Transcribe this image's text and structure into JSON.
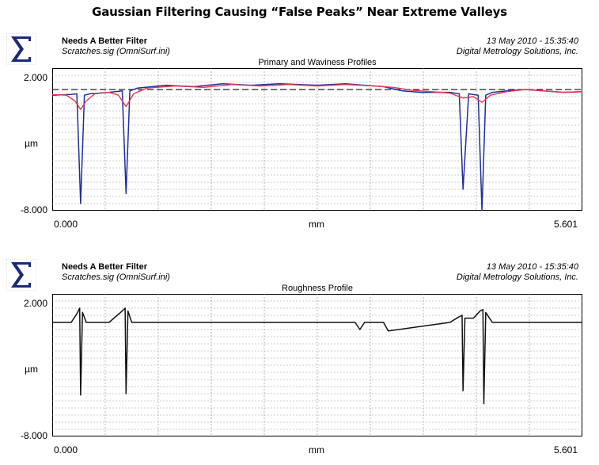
{
  "page_title": "Gaussian Filtering Causing “False Peaks” Near Extreme Valleys",
  "colors": {
    "primary": "#1f2f9c",
    "waviness": "#e8384a",
    "roughness": "#111111",
    "grid": "#9a9a9a",
    "logo": "#1a2a7a"
  },
  "panels": [
    {
      "logo_icon": "sigma-logo-icon",
      "title": "Needs A Better Filter",
      "file": "Scratches.sig  (OmniSurf.ini)",
      "date": "13 May 2010 - 15:35:40",
      "company": "Digital Metrology Solutions, Inc.",
      "plot_title": "Primary and Waviness Profiles",
      "y_top": "2.000",
      "y_unit": "µm",
      "y_bottom": "-8.000",
      "x_left": "0.000",
      "x_unit": "mm",
      "x_right": "5.601"
    },
    {
      "logo_icon": "sigma-logo-icon",
      "title": "Needs A Better Filter",
      "file": "Scratches.sig  (OmniSurf.ini)",
      "date": "13 May 2010 - 15:35:40",
      "company": "Digital Metrology Solutions, Inc.",
      "plot_title": "Roughness Profile",
      "y_top": "2.000",
      "y_unit": "µm",
      "y_bottom": "-8.000",
      "x_left": "0.000",
      "x_unit": "mm",
      "x_right": "5.601"
    }
  ],
  "chart_data": [
    {
      "type": "line",
      "title": "Primary and Waviness Profiles",
      "xlabel": "mm",
      "ylabel": "µm",
      "xlim": [
        0,
        5.601
      ],
      "ylim": [
        -8,
        2
      ],
      "grid": true,
      "reference_line_y": 0.5,
      "series": [
        {
          "x": [
            0.0,
            0.2,
            0.26,
            0.3,
            0.34,
            0.4,
            0.6,
            0.74,
            0.78,
            0.82,
            0.9,
            1.2,
            1.5,
            1.8,
            2.1,
            2.4,
            2.8,
            3.1,
            3.3,
            3.5,
            3.7,
            3.9,
            4.2,
            4.3,
            4.34,
            4.4,
            4.5,
            4.54,
            4.58,
            4.65,
            4.8,
            5.0,
            5.2,
            5.4,
            5.601
          ],
          "values": [
            0.1,
            0.15,
            0.2,
            -7.5,
            0.1,
            0.2,
            0.3,
            0.4,
            -6.8,
            0.4,
            0.6,
            0.8,
            0.7,
            0.9,
            0.8,
            0.9,
            0.8,
            0.9,
            0.8,
            0.7,
            0.4,
            0.3,
            0.3,
            0.2,
            -6.5,
            0.2,
            0.1,
            -8.0,
            0.1,
            0.3,
            0.4,
            0.5,
            0.4,
            0.3,
            0.35
          ]
        },
        {
          "x": [
            0.0,
            0.15,
            0.24,
            0.3,
            0.36,
            0.45,
            0.6,
            0.7,
            0.78,
            0.86,
            1.0,
            1.3,
            1.6,
            1.9,
            2.2,
            2.5,
            2.8,
            3.1,
            3.4,
            3.6,
            3.8,
            4.0,
            4.2,
            4.34,
            4.45,
            4.54,
            4.63,
            4.8,
            5.0,
            5.2,
            5.4,
            5.601
          ],
          "values": [
            0.15,
            0.1,
            -0.3,
            -0.9,
            -0.3,
            0.2,
            0.3,
            0.1,
            -0.7,
            0.2,
            0.6,
            0.75,
            0.65,
            0.85,
            0.75,
            0.85,
            0.75,
            0.85,
            0.75,
            0.65,
            0.45,
            0.35,
            0.25,
            -0.1,
            0.0,
            -0.4,
            0.1,
            0.35,
            0.5,
            0.4,
            0.3,
            0.35
          ]
        }
      ]
    },
    {
      "type": "line",
      "title": "Roughness Profile",
      "xlabel": "mm",
      "ylabel": "µm",
      "xlim": [
        0,
        5.601
      ],
      "ylim": [
        -8,
        2
      ],
      "grid": true,
      "series": [
        {
          "x": [
            0.0,
            0.2,
            0.26,
            0.29,
            0.3,
            0.32,
            0.36,
            0.6,
            0.74,
            0.77,
            0.78,
            0.8,
            0.84,
            1.2,
            2.0,
            3.2,
            3.25,
            3.3,
            3.5,
            3.55,
            4.2,
            4.3,
            4.33,
            4.34,
            4.36,
            4.45,
            4.52,
            4.55,
            4.56,
            4.58,
            4.65,
            5.0,
            5.601
          ],
          "values": [
            0.0,
            0.0,
            0.6,
            1.0,
            -5.1,
            0.7,
            0.0,
            0.0,
            0.8,
            1.0,
            -5.0,
            0.8,
            0.0,
            0.0,
            0.0,
            0.0,
            -0.5,
            0.0,
            0.0,
            -0.6,
            0.0,
            0.4,
            0.5,
            -4.8,
            0.3,
            0.3,
            0.8,
            0.9,
            -5.7,
            0.7,
            0.0,
            0.0,
            0.0
          ]
        }
      ]
    }
  ]
}
